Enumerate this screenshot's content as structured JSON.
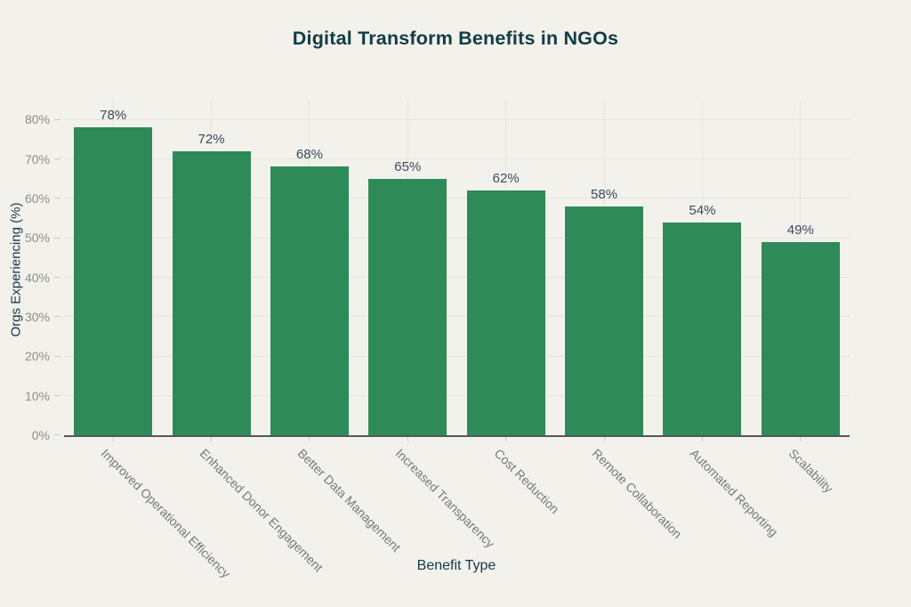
{
  "chart_data": {
    "type": "bar",
    "title": "Digital Transform Benefits in NGOs",
    "xlabel": "Benefit Type",
    "ylabel": "Orgs Experiencing (%)",
    "categories": [
      "Improved Operational Efficiency",
      "Enhanced Donor Engagement",
      "Better Data Management",
      "Increased Transparency",
      "Cost Reduction",
      "Remote Collaboration",
      "Automated Reporting",
      "Scalability"
    ],
    "values": [
      78,
      72,
      68,
      65,
      62,
      58,
      54,
      49
    ],
    "data_labels": [
      "78%",
      "72%",
      "68%",
      "65%",
      "62%",
      "58%",
      "54%",
      "49%"
    ],
    "ytick_labels": [
      "0%",
      "10%",
      "20%",
      "30%",
      "40%",
      "50%",
      "60%",
      "70%",
      "80%"
    ],
    "ylim": [
      0,
      85
    ],
    "grid": "on",
    "legend": "none",
    "colors": {
      "bar": "#2e8b57",
      "background": "#f2f1ec",
      "title": "#123c45",
      "axis_title": "#123c45",
      "value_label": "#3a4b5c",
      "x_tick_label": "#74797d",
      "y_tick_label": "#8d8d89",
      "gridline": "#e5e4de",
      "axis_line": "#55575b",
      "tick_mark": "#c8c7c0"
    }
  }
}
